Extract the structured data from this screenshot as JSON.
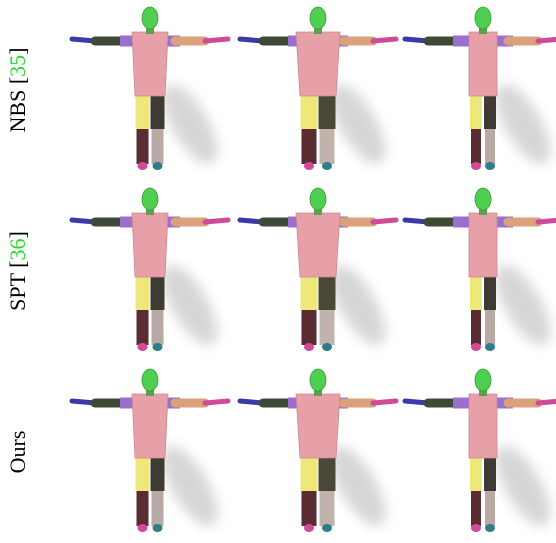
{
  "rows": [
    {
      "label_parts": [
        {
          "text": "NBS ["
        },
        {
          "text": "35",
          "color": "#22dd22"
        },
        {
          "text": "]"
        }
      ]
    },
    {
      "label_parts": [
        {
          "text": "SPT ["
        },
        {
          "text": "36",
          "color": "#22dd22"
        },
        {
          "text": "]"
        }
      ]
    },
    {
      "label_parts": [
        {
          "text": "Ours"
        }
      ]
    }
  ]
}
